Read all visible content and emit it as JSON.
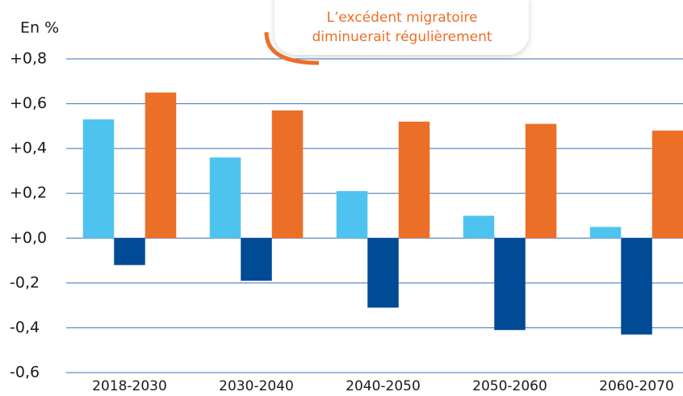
{
  "chart_data": {
    "type": "bar",
    "y_label": "En %",
    "annotation": [
      "L’excédent migratoire",
      "diminuerait régulièrement"
    ],
    "categories": [
      "2018-2030",
      "2030-2040",
      "2040-2050",
      "2050-2060",
      "2060-2070"
    ],
    "series": [
      {
        "color": "#4fc3f0",
        "values": [
          0.53,
          0.36,
          0.21,
          0.1,
          0.05
        ]
      },
      {
        "color": "#004a96",
        "values": [
          -0.12,
          -0.19,
          -0.31,
          -0.41,
          -0.43
        ]
      },
      {
        "color": "#ec6f27",
        "values": [
          0.65,
          0.57,
          0.52,
          0.51,
          0.48
        ]
      }
    ],
    "ylim": [
      -0.6,
      0.8
    ],
    "yticks": [
      {
        "value": -0.6,
        "label": "-0,6"
      },
      {
        "value": -0.4,
        "label": "-0,4"
      },
      {
        "value": -0.2,
        "label": "-0,2"
      },
      {
        "value": 0,
        "label": "+0,0"
      },
      {
        "value": 0.2,
        "label": "+0,2"
      },
      {
        "value": 0.4,
        "label": "+0,4"
      },
      {
        "value": 0.6,
        "label": "+0,6"
      },
      {
        "value": 0.8,
        "label": "+0,8"
      }
    ],
    "grid": true
  }
}
